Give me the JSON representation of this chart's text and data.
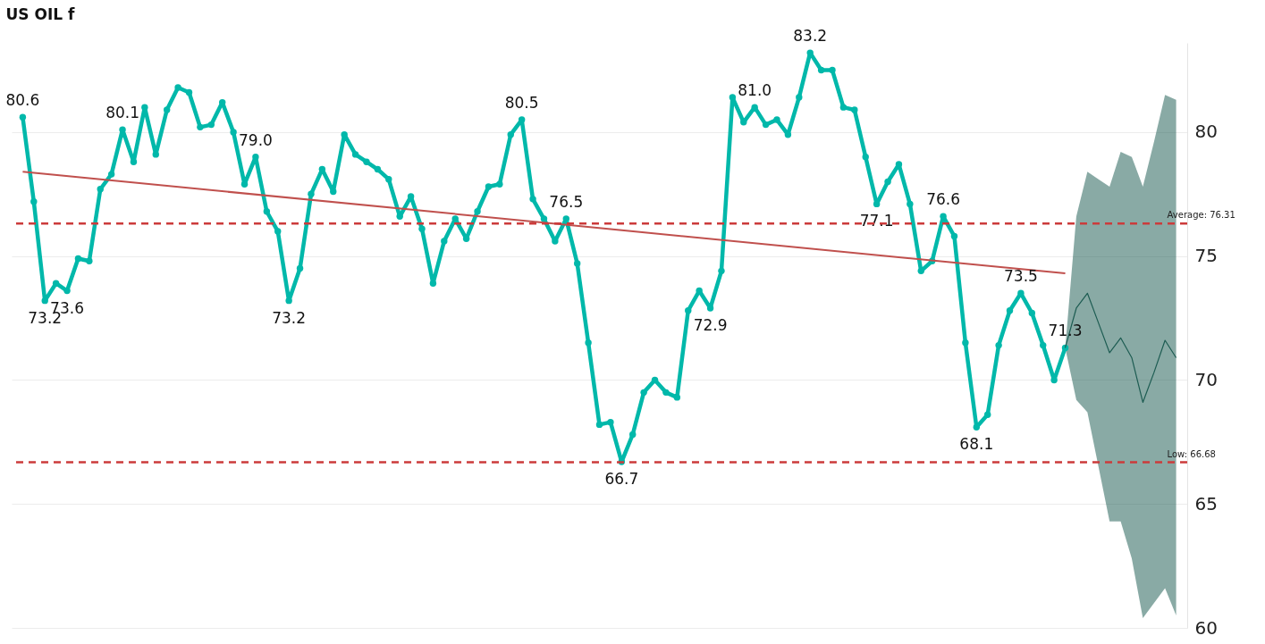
{
  "chart_data": {
    "type": "line",
    "title": "US OIL f",
    "categories": [
      null,
      null,
      null,
      null,
      null,
      null,
      null,
      null,
      null,
      null,
      null,
      null,
      null,
      null,
      null,
      null,
      null,
      null,
      null,
      null,
      null,
      null,
      null,
      null,
      null,
      null,
      null,
      null,
      null,
      null,
      null,
      null,
      null,
      null,
      null,
      null,
      null,
      null,
      null,
      null,
      null,
      null,
      null,
      null,
      null,
      null,
      null,
      null,
      null,
      null,
      null,
      null,
      null,
      null,
      null,
      null,
      null,
      null,
      null,
      null,
      null,
      null,
      null,
      null,
      null,
      null,
      null,
      null,
      null,
      null,
      null,
      null,
      null,
      null,
      null,
      null,
      null,
      null,
      null,
      null,
      null,
      null,
      null,
      null,
      null,
      null,
      null,
      null,
      null,
      null,
      null,
      null,
      null,
      null,
      null,
      null,
      null,
      null,
      null,
      null,
      null,
      null,
      null,
      null,
      null
    ],
    "series": [
      {
        "color": "#01b8aa",
        "marker": "circle",
        "line_style": "solid",
        "values": [
          80.6,
          77.2,
          73.2,
          73.9,
          73.6,
          74.9,
          74.8,
          77.7,
          78.3,
          80.1,
          78.8,
          81.0,
          79.1,
          80.9,
          81.8,
          81.6,
          80.2,
          80.3,
          81.2,
          80.0,
          77.9,
          79.0,
          76.8,
          76.0,
          73.2,
          74.5,
          77.5,
          78.5,
          77.6,
          79.9,
          79.1,
          78.8,
          78.5,
          78.1,
          76.6,
          77.4,
          76.1,
          73.9,
          75.6,
          76.5,
          75.7,
          76.8,
          77.8,
          77.9,
          79.9,
          80.5,
          77.3,
          76.5,
          75.6,
          76.5,
          74.7,
          71.5,
          68.2,
          68.3,
          66.7,
          67.8,
          69.5,
          70.0,
          69.5,
          69.3,
          72.8,
          73.6,
          72.9,
          74.4,
          81.4,
          80.4,
          81.0,
          80.3,
          80.5,
          79.9,
          81.4,
          83.2,
          82.5,
          82.5,
          81.0,
          80.9,
          79.0,
          77.1,
          78.0,
          78.7,
          77.1,
          74.4,
          74.8,
          76.6,
          75.8,
          71.5,
          68.1,
          68.6,
          71.4,
          72.8,
          73.5,
          72.7,
          71.4,
          70.0,
          71.3,
          null,
          null,
          null,
          null,
          null,
          null,
          null,
          null,
          null,
          null
        ],
        "value_labels": [
          "80.6",
          null,
          "73.2",
          null,
          "73.6",
          null,
          null,
          null,
          null,
          "80.1",
          null,
          null,
          null,
          null,
          null,
          null,
          null,
          null,
          null,
          null,
          null,
          "79.0",
          null,
          null,
          "73.2",
          null,
          null,
          null,
          null,
          null,
          null,
          null,
          null,
          null,
          null,
          null,
          null,
          null,
          null,
          null,
          null,
          null,
          null,
          null,
          null,
          "80.5",
          null,
          null,
          null,
          "76.5",
          null,
          null,
          null,
          null,
          "66.7",
          null,
          null,
          null,
          null,
          null,
          null,
          null,
          "72.9",
          null,
          null,
          null,
          "81.0",
          null,
          null,
          null,
          null,
          "83.2",
          null,
          null,
          null,
          null,
          null,
          "77.1",
          null,
          null,
          null,
          null,
          null,
          "76.6",
          null,
          null,
          "68.1",
          null,
          null,
          null,
          "73.5",
          null,
          null,
          null,
          "71.3",
          null,
          null,
          null,
          null,
          null,
          null,
          null,
          null,
          null,
          null
        ]
      },
      {
        "color": "#1d5c52",
        "marker": "none",
        "line_style": "solid",
        "values": [
          null,
          null,
          null,
          null,
          null,
          null,
          null,
          null,
          null,
          null,
          null,
          null,
          null,
          null,
          null,
          null,
          null,
          null,
          null,
          null,
          null,
          null,
          null,
          null,
          null,
          null,
          null,
          null,
          null,
          null,
          null,
          null,
          null,
          null,
          null,
          null,
          null,
          null,
          null,
          null,
          null,
          null,
          null,
          null,
          null,
          null,
          null,
          null,
          null,
          null,
          null,
          null,
          null,
          null,
          null,
          null,
          null,
          null,
          null,
          null,
          null,
          null,
          null,
          null,
          null,
          null,
          null,
          null,
          null,
          null,
          null,
          null,
          null,
          null,
          null,
          null,
          null,
          null,
          null,
          null,
          null,
          null,
          null,
          null,
          null,
          null,
          null,
          null,
          null,
          null,
          null,
          null,
          null,
          null,
          71.3,
          72.9,
          73.5,
          72.3,
          71.1,
          71.7,
          70.9,
          69.1,
          70.3,
          71.6,
          70.9
        ],
        "lower": [
          null,
          null,
          null,
          null,
          null,
          null,
          null,
          null,
          null,
          null,
          null,
          null,
          null,
          null,
          null,
          null,
          null,
          null,
          null,
          null,
          null,
          null,
          null,
          null,
          null,
          null,
          null,
          null,
          null,
          null,
          null,
          null,
          null,
          null,
          null,
          null,
          null,
          null,
          null,
          null,
          null,
          null,
          null,
          null,
          null,
          null,
          null,
          null,
          null,
          null,
          null,
          null,
          null,
          null,
          null,
          null,
          null,
          null,
          null,
          null,
          null,
          null,
          null,
          null,
          null,
          null,
          null,
          null,
          null,
          null,
          null,
          null,
          null,
          null,
          null,
          null,
          null,
          null,
          null,
          null,
          null,
          null,
          null,
          null,
          null,
          null,
          null,
          null,
          null,
          null,
          null,
          null,
          null,
          null,
          71.3,
          69.2,
          68.7,
          66.5,
          64.3,
          64.3,
          62.8,
          60.4,
          61.0,
          61.6,
          60.5
        ],
        "upper": [
          null,
          null,
          null,
          null,
          null,
          null,
          null,
          null,
          null,
          null,
          null,
          null,
          null,
          null,
          null,
          null,
          null,
          null,
          null,
          null,
          null,
          null,
          null,
          null,
          null,
          null,
          null,
          null,
          null,
          null,
          null,
          null,
          null,
          null,
          null,
          null,
          null,
          null,
          null,
          null,
          null,
          null,
          null,
          null,
          null,
          null,
          null,
          null,
          null,
          null,
          null,
          null,
          null,
          null,
          null,
          null,
          null,
          null,
          null,
          null,
          null,
          null,
          null,
          null,
          null,
          null,
          null,
          null,
          null,
          null,
          null,
          null,
          null,
          null,
          null,
          null,
          null,
          null,
          null,
          null,
          null,
          null,
          null,
          null,
          null,
          null,
          null,
          null,
          null,
          null,
          null,
          null,
          null,
          null,
          71.3,
          76.6,
          78.4,
          78.1,
          77.8,
          79.2,
          79.0,
          77.8,
          79.6,
          81.5,
          81.3
        ]
      },
      {
        "color": "#c0504d",
        "marker": "none",
        "line_style": "solid",
        "values": [
          78.4,
          null,
          null,
          null,
          null,
          null,
          null,
          null,
          null,
          null,
          null,
          null,
          null,
          null,
          null,
          null,
          null,
          null,
          null,
          null,
          null,
          null,
          null,
          null,
          null,
          null,
          null,
          null,
          null,
          null,
          null,
          null,
          null,
          null,
          null,
          null,
          null,
          null,
          null,
          null,
          null,
          null,
          null,
          null,
          null,
          null,
          null,
          null,
          null,
          null,
          null,
          null,
          null,
          null,
          null,
          null,
          null,
          null,
          null,
          null,
          null,
          null,
          null,
          null,
          null,
          null,
          null,
          null,
          null,
          null,
          null,
          null,
          null,
          null,
          null,
          null,
          null,
          null,
          null,
          null,
          null,
          null,
          null,
          null,
          null,
          null,
          null,
          null,
          null,
          null,
          null,
          null,
          null,
          null,
          74.3,
          null,
          null,
          null,
          null,
          null,
          null,
          null,
          null,
          null,
          null
        ]
      }
    ],
    "ylim": [
      60,
      83.6
    ],
    "yticks": [
      60,
      65,
      70,
      75,
      80
    ],
    "grid": "y",
    "tick_labels": "y",
    "ref_lines": [
      {
        "axis": "y",
        "value": 76.31,
        "label": "Average: 76.31",
        "color": "#cc3b3b",
        "line_style": "dashed"
      },
      {
        "axis": "y",
        "value": 66.68,
        "label": "Low: 66.68",
        "color": "#cc3b3b",
        "line_style": "dashed"
      }
    ]
  }
}
